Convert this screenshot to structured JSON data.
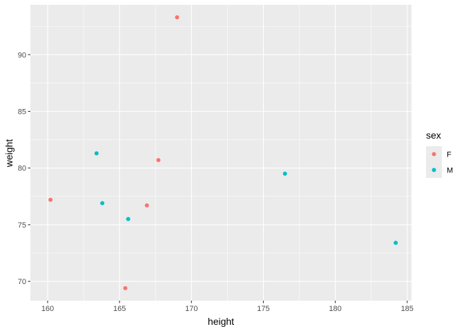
{
  "chart_data": {
    "type": "scatter",
    "xlabel": "height",
    "ylabel": "weight",
    "xlim": [
      158.8,
      185.3
    ],
    "ylim": [
      68.3,
      94.4
    ],
    "x_ticks": [
      160,
      165,
      170,
      175,
      180,
      185
    ],
    "y_ticks": [
      70,
      75,
      80,
      85,
      90
    ],
    "x_minor": [
      162.5,
      167.5,
      172.5,
      177.5,
      182.5
    ],
    "y_minor": [
      72.5,
      77.5,
      82.5,
      87.5,
      92.5
    ],
    "grid": true,
    "legend": {
      "title": "sex",
      "position": "right"
    },
    "series": [
      {
        "name": "F",
        "color": "#F8766D",
        "points": [
          {
            "x": 160.2,
            "y": 77.2
          },
          {
            "x": 165.4,
            "y": 69.4
          },
          {
            "x": 166.9,
            "y": 76.7
          },
          {
            "x": 167.7,
            "y": 80.7
          },
          {
            "x": 169.0,
            "y": 93.3
          }
        ]
      },
      {
        "name": "M",
        "color": "#00BFC4",
        "points": [
          {
            "x": 163.4,
            "y": 81.3
          },
          {
            "x": 163.8,
            "y": 76.9
          },
          {
            "x": 165.6,
            "y": 75.5
          },
          {
            "x": 176.5,
            "y": 79.5
          },
          {
            "x": 184.2,
            "y": 73.4
          }
        ]
      }
    ]
  }
}
